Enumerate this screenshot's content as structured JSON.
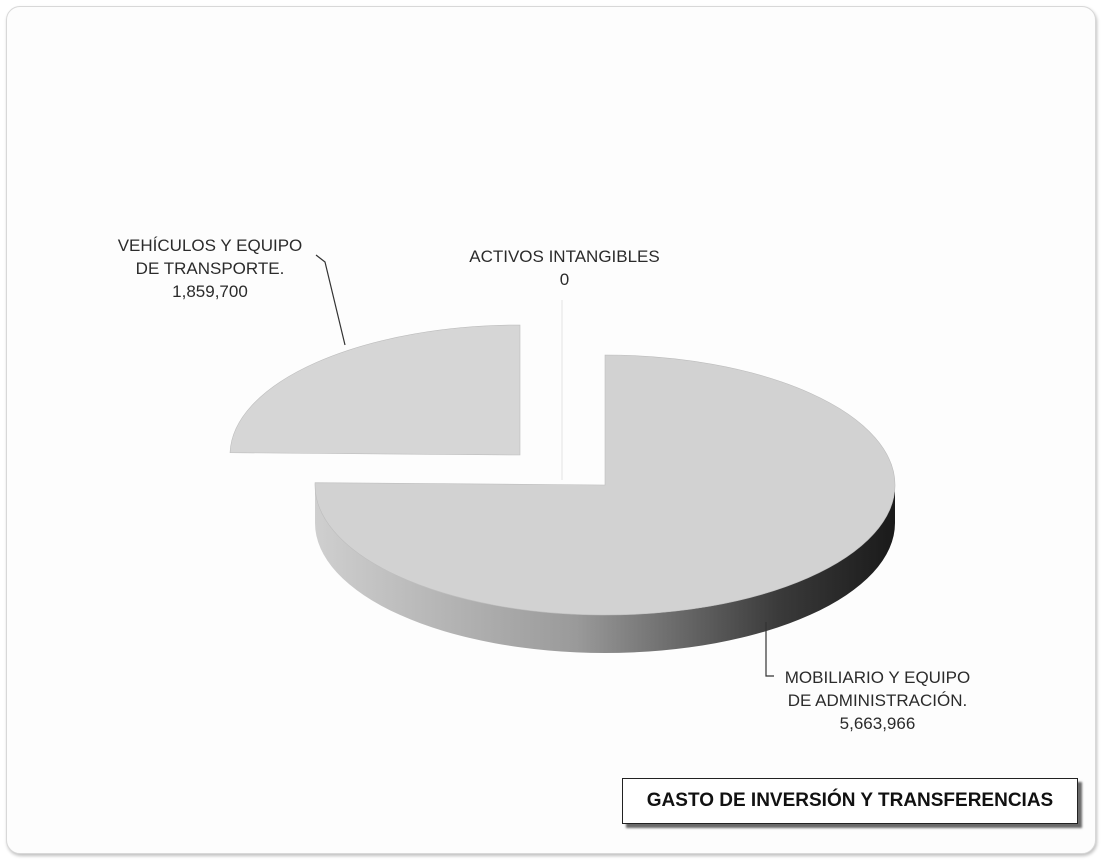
{
  "chart_data": {
    "type": "pie",
    "title": "GASTO DE INVERSIÓN Y TRANSFERENCIAS",
    "three_d": true,
    "exploded": true,
    "slices": [
      {
        "label_lines": [
          "MOBILIARIO Y EQUIPO",
          "DE ADMINISTRACIÓN."
        ],
        "value_text": "5,663,966",
        "value": 5663966,
        "color": "#d2d2d2"
      },
      {
        "label_lines": [
          "ACTIVOS INTANGIBLES"
        ],
        "value_text": "0",
        "value": 0,
        "color": "#e6e6e6"
      },
      {
        "label_lines": [
          "VEHÍCULOS Y EQUIPO",
          "DE TRANSPORTE."
        ],
        "value_text": "1,859,700",
        "value": 1859700,
        "color": "#d6d6d6"
      }
    ]
  }
}
